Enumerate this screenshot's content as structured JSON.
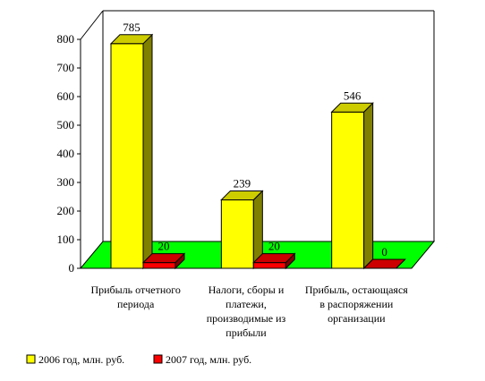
{
  "chart_data": {
    "type": "bar",
    "style": "3d-column",
    "categories": [
      [
        "Прибыль отчетного",
        "периода"
      ],
      [
        "Налоги, сборы и",
        "платежи,",
        "производимые из",
        "прибыли"
      ],
      [
        "Прибыль, остающаяся",
        "в распоряжении",
        "организации"
      ]
    ],
    "series": [
      {
        "name": "2006 год, млн. руб.",
        "values": [
          785,
          239,
          546
        ],
        "color": "#ffff00",
        "side_color": "#808000",
        "top_color": "#cccc00"
      },
      {
        "name": "2007 год, млн. руб.",
        "values": [
          20,
          20,
          0
        ],
        "color": "#ff0000",
        "side_color": "#800000",
        "top_color": "#cc0000"
      }
    ],
    "data_labels": [
      [
        "785",
        "239",
        "546"
      ],
      [
        "20",
        "20",
        "0"
      ]
    ],
    "y_ticks": [
      "0",
      "100",
      "200",
      "300",
      "400",
      "500",
      "600",
      "700",
      "800"
    ],
    "ylim": [
      0,
      800
    ],
    "floor_color": "#00ff00",
    "grid": false,
    "legend_position": "bottom-left",
    "title": "",
    "xlabel": "",
    "ylabel": ""
  }
}
